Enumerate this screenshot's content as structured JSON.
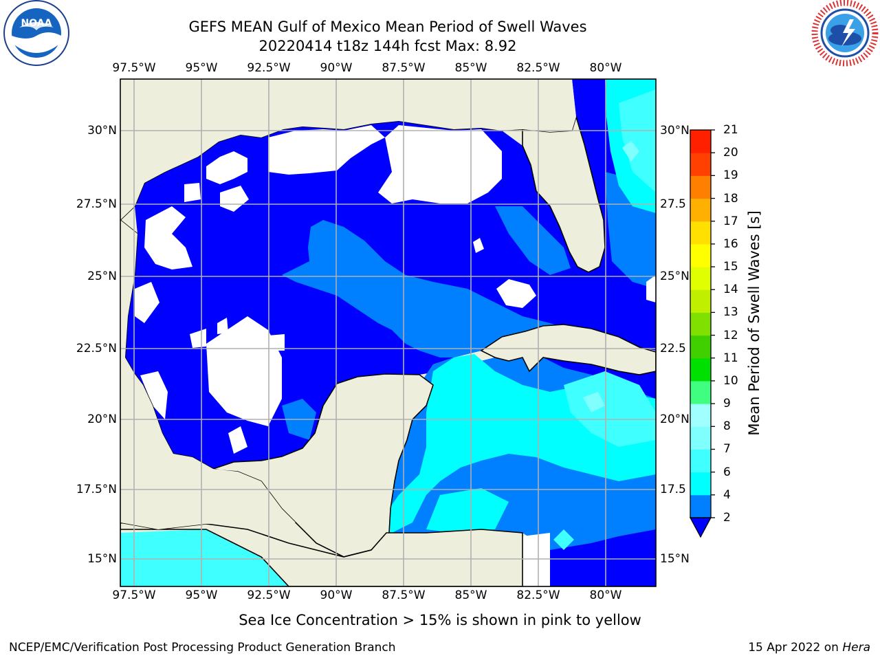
{
  "header": {
    "title_line1": "GEFS MEAN Gulf of Mexico Mean Period of Swell Waves",
    "title_line2": "20220414 t18z 144h fcst   Max: 8.92"
  },
  "logos": {
    "left": "NOAA",
    "left_ring": "NATIONAL OCEANIC AND ATMOSPHERIC ADMINISTRATION · U.S. DEPARTMENT OF COMMERCE",
    "right_ring": "NATIONAL WEATHER SERVICE"
  },
  "map": {
    "lon_ticks": [
      "97.5°W",
      "95°W",
      "92.5°W",
      "90°W",
      "87.5°W",
      "85°W",
      "82.5°W",
      "80°W"
    ],
    "lat_ticks_left": [
      "30°N",
      "27.5°N",
      "25°N",
      "22.5°N",
      "20°N",
      "17.5°N",
      "15°N"
    ],
    "lat_ticks_right": [
      "30°N",
      "27.5",
      "25°N",
      "22.5",
      "20°N",
      "17.5",
      "15°N"
    ],
    "extent": {
      "lon": [
        -98.1,
        -79.0
      ],
      "lat": [
        14.0,
        31.8
      ]
    }
  },
  "colorbar": {
    "label": "Mean Period of Swell Waves [s]",
    "ticks": [
      "2",
      "4",
      "6",
      "7",
      "8",
      "9",
      "10",
      "11",
      "12",
      "13",
      "14",
      "15",
      "16",
      "17",
      "18",
      "19",
      "20",
      "21"
    ],
    "colors": [
      "#0000ff",
      "#0080ff",
      "#00ffff",
      "#40ffff",
      "#80ffff",
      "#a0ffff",
      "#40ff80",
      "#00e000",
      "#40d000",
      "#80e000",
      "#c0f000",
      "#e0ff00",
      "#ffff00",
      "#ffe000",
      "#ffb000",
      "#ff8000",
      "#ff4000",
      "#ff2000",
      "#ff0000"
    ],
    "extend": "min"
  },
  "footer": {
    "note": "Sea Ice Concentration > 15% is shown in pink to yellow",
    "credit": "NCEP/EMC/Verification Post Processing Product Generation Branch",
    "date_prefix": "15 Apr 2022 on ",
    "date_host": "Hera"
  }
}
